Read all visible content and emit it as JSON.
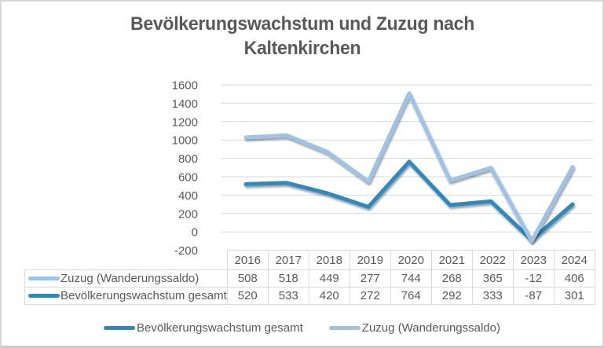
{
  "title_lines": "Bevölkerungswachstum und Zuzug nach Kaltenkirchen",
  "colors": {
    "background": "#FFFFFF",
    "frame_border": "#D6D6D6",
    "grid": "#D9D9D9",
    "text": "#595959",
    "table_border": "#D9D9D9",
    "series_dark": "#2D89BD",
    "series_light": "#9DC3E6"
  },
  "chart_data": {
    "type": "line",
    "stacked": true,
    "title": "Bevölkerungswachstum und Zuzug nach Kaltenkirchen",
    "categories": [
      "2016",
      "2017",
      "2018",
      "2019",
      "2020",
      "2021",
      "2022",
      "2023",
      "2024"
    ],
    "series": [
      {
        "name": "Bevölkerungswachstum gesamt",
        "color": "#2D89BD",
        "values": [
          520,
          533,
          420,
          272,
          764,
          292,
          333,
          -87,
          301
        ]
      },
      {
        "name": "Zuzug (Wanderungssaldo)",
        "color": "#9DC3E6",
        "values": [
          508,
          518,
          449,
          277,
          744,
          268,
          365,
          -12,
          406
        ]
      }
    ],
    "ylim": [
      -200,
      1600
    ],
    "yticks": [
      1600,
      1400,
      1200,
      1000,
      800,
      600,
      400,
      200,
      0,
      -200
    ],
    "grid": "horizontal",
    "legend_position": "bottom",
    "data_table": true,
    "table_series_order": [
      1,
      0
    ],
    "xlabel": "",
    "ylabel": ""
  },
  "legend": {
    "items": [
      {
        "label": "Bevölkerungswachstum gesamt",
        "color": "#2D89BD"
      },
      {
        "label": "Zuzug (Wanderungssaldo)",
        "color": "#9DC3E6"
      }
    ]
  }
}
